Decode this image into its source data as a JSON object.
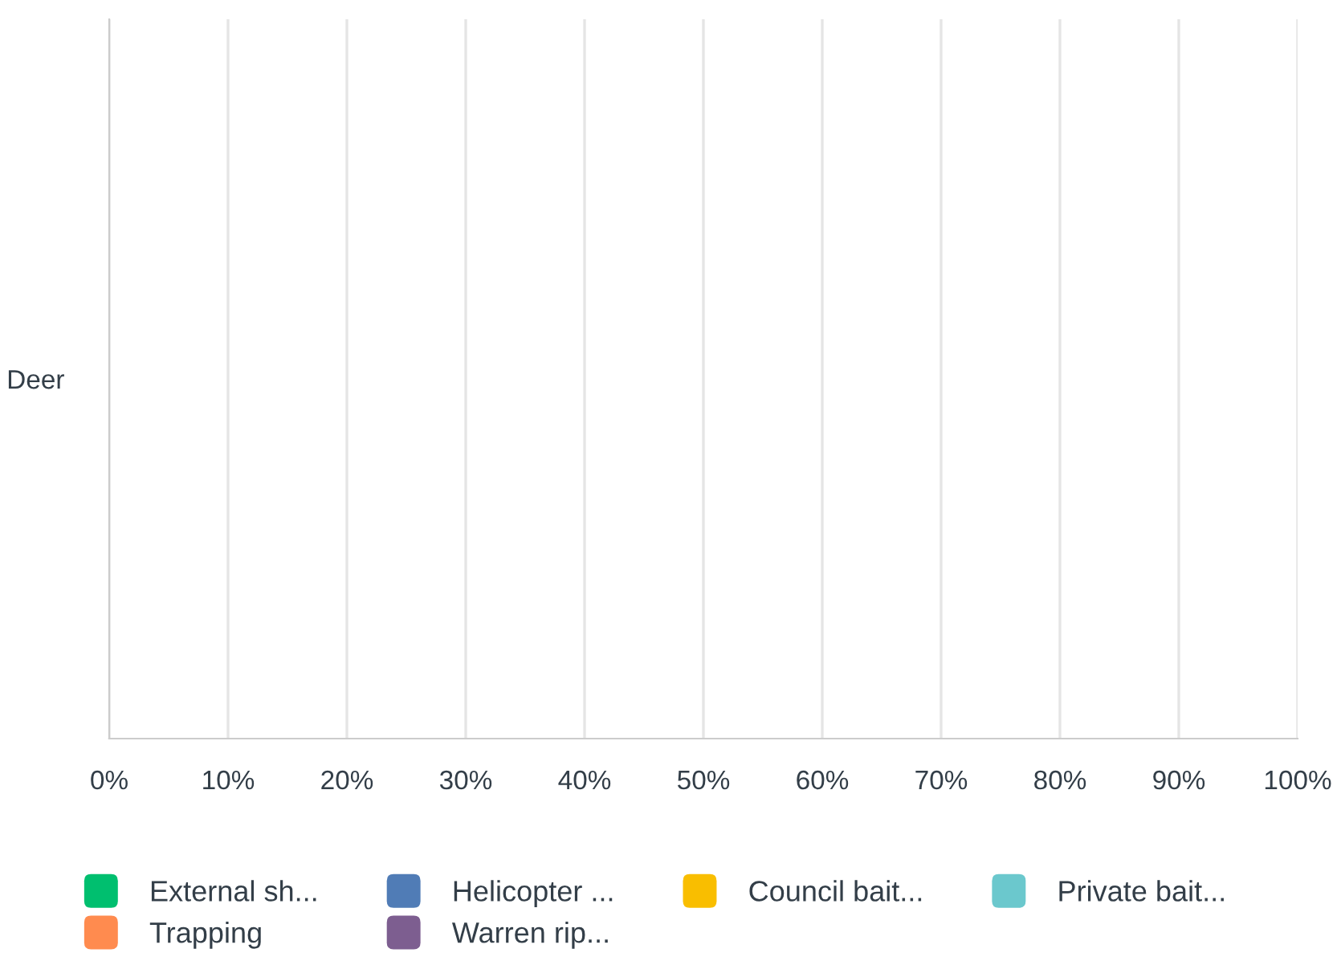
{
  "chart_data": {
    "type": "bar",
    "orientation": "horizontal",
    "categories": [
      "Deer"
    ],
    "series": [
      {
        "name": "External sh...",
        "color": "#00bf6f",
        "values": [
          0
        ]
      },
      {
        "name": "Helicopter ...",
        "color": "#507cb6",
        "values": [
          0
        ]
      },
      {
        "name": "Council bait...",
        "color": "#f9be00",
        "values": [
          0
        ]
      },
      {
        "name": "Private bait...",
        "color": "#6bc8cd",
        "values": [
          0
        ]
      },
      {
        "name": "Trapping",
        "color": "#ff8b4f",
        "values": [
          0
        ]
      },
      {
        "name": "Warren rip...",
        "color": "#7d5e90",
        "values": [
          0
        ]
      }
    ],
    "xlim": [
      0,
      100
    ],
    "xticks": [
      {
        "value": 0,
        "label": "0%"
      },
      {
        "value": 10,
        "label": "10%"
      },
      {
        "value": 20,
        "label": "20%"
      },
      {
        "value": 30,
        "label": "30%"
      },
      {
        "value": 40,
        "label": "40%"
      },
      {
        "value": 50,
        "label": "50%"
      },
      {
        "value": 60,
        "label": "60%"
      },
      {
        "value": 70,
        "label": "70%"
      },
      {
        "value": 80,
        "label": "80%"
      },
      {
        "value": 90,
        "label": "90%"
      },
      {
        "value": 100,
        "label": "100%"
      }
    ],
    "grid": "x",
    "legend": "bottom"
  }
}
